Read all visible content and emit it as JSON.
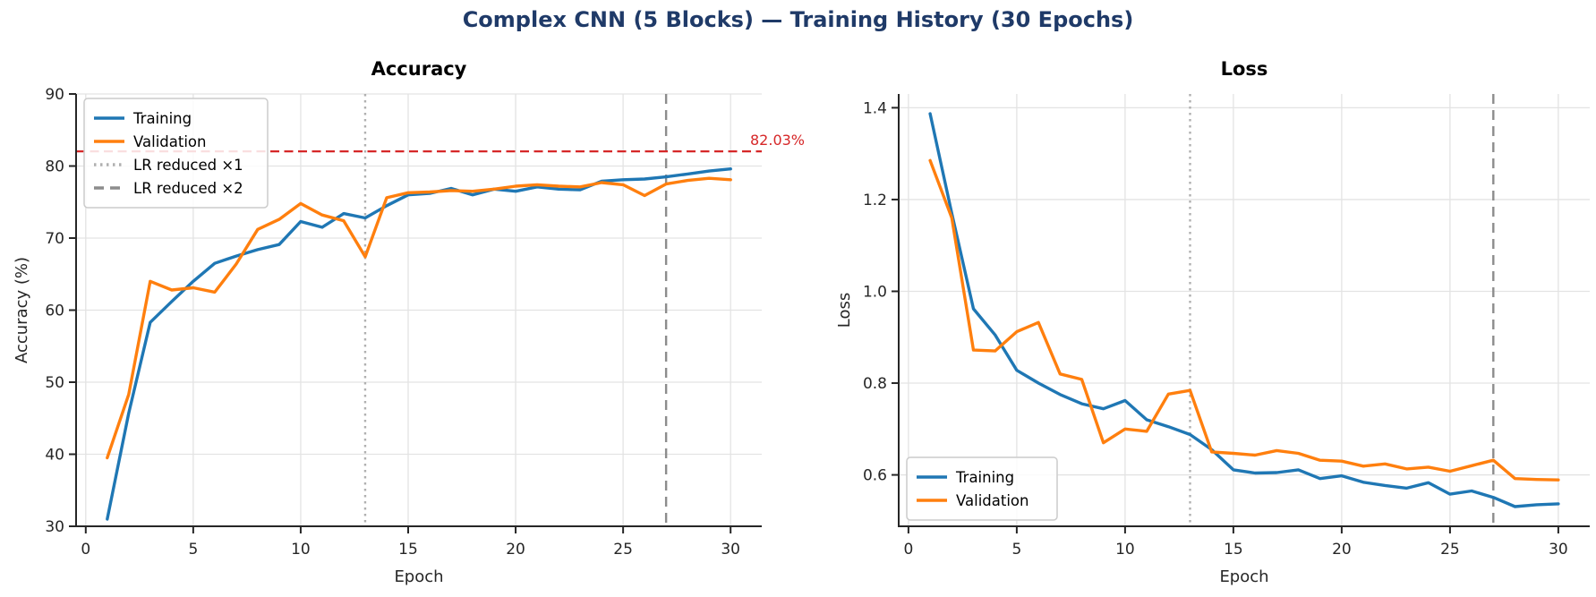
{
  "main": {
    "title": "Complex CNN (5 Blocks) — Training History (30 Epochs)",
    "title_color": "#1f3a68"
  },
  "colors": {
    "training": "#1f77b4",
    "validation": "#ff7f0e",
    "target_line": "#d62728",
    "lr1_line": "#b0b0b0",
    "lr2_line": "#8c8c8c",
    "grid": "#e3e3e3",
    "spine": "#262626",
    "text": "#262626"
  },
  "chart_data": [
    {
      "type": "line",
      "title": "Accuracy",
      "xlabel": "Epoch",
      "ylabel": "Accuracy (%)",
      "xlim": [
        -0.45,
        31.45
      ],
      "ylim": [
        30,
        90
      ],
      "xticks": [
        0,
        5,
        10,
        15,
        20,
        25,
        30
      ],
      "xticklabels": [
        "0",
        "5",
        "10",
        "15",
        "20",
        "25",
        "30"
      ],
      "yticks": [
        30,
        40,
        50,
        60,
        70,
        80,
        90
      ],
      "yticklabels": [
        "30",
        "40",
        "50",
        "60",
        "70",
        "80",
        "90"
      ],
      "grid": true,
      "x": [
        1,
        2,
        3,
        4,
        5,
        6,
        7,
        8,
        9,
        10,
        11,
        12,
        13,
        14,
        15,
        16,
        17,
        18,
        19,
        20,
        21,
        22,
        23,
        24,
        25,
        26,
        27,
        28,
        29,
        30
      ],
      "series": [
        {
          "name": "Training",
          "color": "#1f77b4",
          "dash": "solid",
          "values": [
            31.0,
            45.7,
            58.3,
            61.2,
            64.0,
            66.5,
            67.5,
            68.4,
            69.1,
            72.3,
            71.5,
            73.4,
            72.8,
            74.5,
            76.0,
            76.2,
            76.9,
            76.0,
            76.8,
            76.5,
            77.1,
            76.8,
            76.7,
            77.9,
            78.1,
            78.2,
            78.5,
            78.9,
            79.3,
            79.6
          ]
        },
        {
          "name": "Validation",
          "color": "#ff7f0e",
          "dash": "solid",
          "values": [
            39.5,
            48.3,
            64.0,
            62.8,
            63.1,
            62.5,
            66.4,
            71.2,
            72.6,
            74.8,
            73.2,
            72.4,
            67.4,
            75.6,
            76.3,
            76.4,
            76.6,
            76.5,
            76.8,
            77.2,
            77.4,
            77.2,
            77.1,
            77.7,
            77.4,
            75.9,
            77.5,
            78.0,
            78.3,
            78.1
          ]
        }
      ],
      "vlines": [
        {
          "x": 13,
          "color": "#b0b0b0",
          "dash": "dotted",
          "label": "LR reduced ×1"
        },
        {
          "x": 27,
          "color": "#8c8c8c",
          "dash": "dashed",
          "label": "LR reduced ×2"
        }
      ],
      "hlines": [
        {
          "y": 82.03,
          "color": "#d62728",
          "dash": "dashed",
          "annotation": "82.03%"
        }
      ],
      "legend": {
        "position": "top-left",
        "items": [
          {
            "label": "Training",
            "color": "#1f77b4",
            "dash": "solid"
          },
          {
            "label": "Validation",
            "color": "#ff7f0e",
            "dash": "solid"
          },
          {
            "label": "LR reduced ×1",
            "color": "#b0b0b0",
            "dash": "dotted"
          },
          {
            "label": "LR reduced ×2",
            "color": "#8c8c8c",
            "dash": "dashed"
          }
        ]
      }
    },
    {
      "type": "line",
      "title": "Loss",
      "xlabel": "Epoch",
      "ylabel": "Loss",
      "xlim": [
        -0.45,
        31.45
      ],
      "ylim": [
        0.488,
        1.43
      ],
      "xticks": [
        0,
        5,
        10,
        15,
        20,
        25,
        30
      ],
      "xticklabels": [
        "0",
        "5",
        "10",
        "15",
        "20",
        "25",
        "30"
      ],
      "yticks": [
        0.6,
        0.8,
        1.0,
        1.2,
        1.4
      ],
      "yticklabels": [
        "0.6",
        "0.8",
        "1.0",
        "1.2",
        "1.4"
      ],
      "grid": true,
      "x": [
        1,
        2,
        3,
        4,
        5,
        6,
        7,
        8,
        9,
        10,
        11,
        12,
        13,
        14,
        15,
        16,
        17,
        18,
        19,
        20,
        21,
        22,
        23,
        24,
        25,
        26,
        27,
        28,
        29,
        30
      ],
      "series": [
        {
          "name": "Training",
          "color": "#1f77b4",
          "dash": "solid",
          "values": [
            1.387,
            1.17,
            0.962,
            0.905,
            0.828,
            0.8,
            0.775,
            0.755,
            0.744,
            0.762,
            0.72,
            0.705,
            0.688,
            0.655,
            0.611,
            0.604,
            0.605,
            0.611,
            0.592,
            0.598,
            0.584,
            0.577,
            0.571,
            0.583,
            0.558,
            0.565,
            0.551,
            0.531,
            0.535,
            0.537
          ]
        },
        {
          "name": "Validation",
          "color": "#ff7f0e",
          "dash": "solid",
          "values": [
            1.285,
            1.16,
            0.872,
            0.87,
            0.912,
            0.932,
            0.82,
            0.808,
            0.67,
            0.7,
            0.695,
            0.776,
            0.784,
            0.65,
            0.647,
            0.643,
            0.653,
            0.647,
            0.632,
            0.63,
            0.619,
            0.624,
            0.613,
            0.617,
            0.608,
            0.62,
            0.632,
            0.592,
            0.59,
            0.589
          ]
        }
      ],
      "vlines": [
        {
          "x": 13,
          "color": "#b0b0b0",
          "dash": "dotted",
          "label": "LR reduced ×1"
        },
        {
          "x": 27,
          "color": "#8c8c8c",
          "dash": "dashed",
          "label": "LR reduced ×2"
        }
      ],
      "hlines": [],
      "legend": {
        "position": "bottom-left",
        "items": [
          {
            "label": "Training",
            "color": "#1f77b4",
            "dash": "solid"
          },
          {
            "label": "Validation",
            "color": "#ff7f0e",
            "dash": "solid"
          }
        ]
      }
    }
  ]
}
